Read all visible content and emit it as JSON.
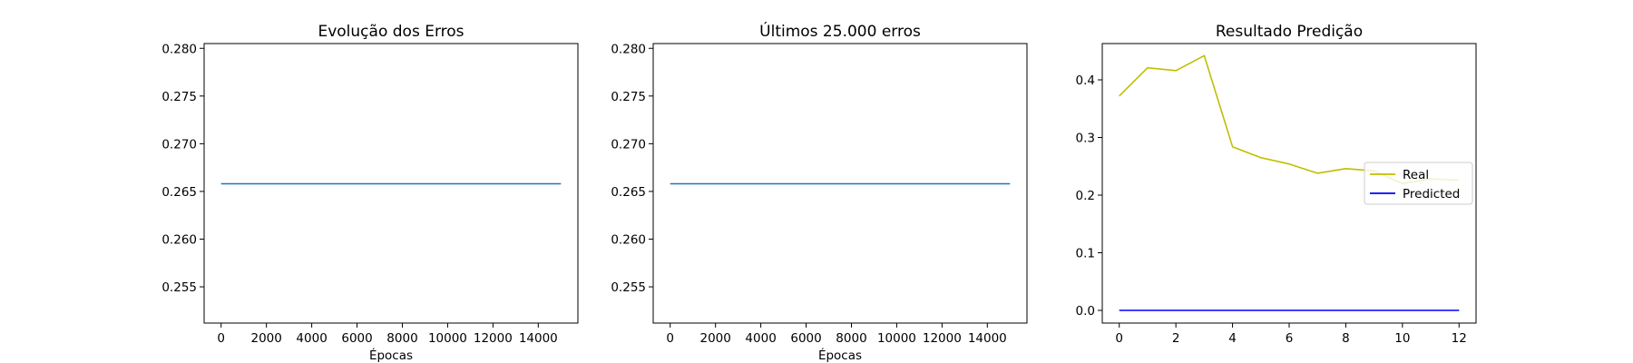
{
  "chart_data": [
    {
      "type": "line",
      "title": "Evolução dos Erros",
      "xlabel": "Épocas",
      "ylabel": "",
      "xlim": [
        -750,
        15750
      ],
      "ylim": [
        0.2512,
        0.2805
      ],
      "xticks": [
        0,
        2000,
        4000,
        6000,
        8000,
        10000,
        12000,
        14000
      ],
      "yticks": [
        0.255,
        0.26,
        0.265,
        0.27,
        0.275,
        0.28
      ],
      "ytick_decimals": 3,
      "grid": false,
      "series": [
        {
          "color": "#1f77b4",
          "x": [
            0,
            15000
          ],
          "y": [
            0.2658,
            0.2658
          ]
        }
      ]
    },
    {
      "type": "line",
      "title": "Últimos 25.000 erros",
      "xlabel": "Épocas",
      "ylabel": "",
      "xlim": [
        -750,
        15750
      ],
      "ylim": [
        0.2512,
        0.2805
      ],
      "xticks": [
        0,
        2000,
        4000,
        6000,
        8000,
        10000,
        12000,
        14000
      ],
      "yticks": [
        0.255,
        0.26,
        0.265,
        0.27,
        0.275,
        0.28
      ],
      "ytick_decimals": 3,
      "grid": false,
      "series": [
        {
          "color": "#1f77b4",
          "x": [
            0,
            15000
          ],
          "y": [
            0.2658,
            0.2658
          ]
        }
      ]
    },
    {
      "type": "line",
      "title": "Resultado Predição",
      "xlabel": "",
      "ylabel": "",
      "xlim": [
        -0.6,
        12.6
      ],
      "ylim": [
        -0.022,
        0.463
      ],
      "xticks": [
        0,
        2,
        4,
        6,
        8,
        10,
        12
      ],
      "yticks": [
        0.0,
        0.1,
        0.2,
        0.3,
        0.4
      ],
      "ytick_decimals": 1,
      "grid": false,
      "legend": "center-right",
      "series": [
        {
          "name": "Real",
          "color": "#bfbf00",
          "x": [
            0,
            1,
            2,
            3,
            4,
            5,
            6,
            7,
            8,
            9,
            10,
            11,
            12
          ],
          "y": [
            0.372,
            0.421,
            0.416,
            0.442,
            0.284,
            0.265,
            0.254,
            0.238,
            0.246,
            0.242,
            0.22,
            0.228,
            0.226
          ]
        },
        {
          "name": "Predicted",
          "color": "#0000ff",
          "x": [
            0,
            12
          ],
          "y": [
            0.0,
            0.0
          ]
        }
      ]
    }
  ]
}
